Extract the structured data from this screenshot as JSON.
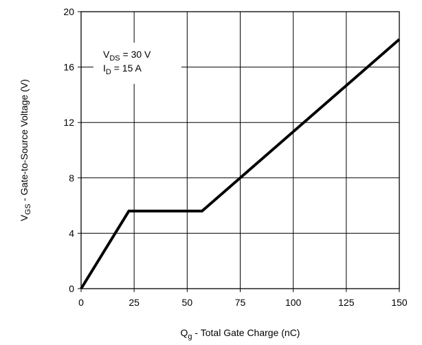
{
  "chart_data": {
    "type": "line",
    "title": "",
    "xlabel": {
      "main": "Q",
      "sub": "g",
      "rest": " - Total Gate Charge (nC)"
    },
    "ylabel": {
      "main": "V",
      "sub": "GS",
      "rest": " - Gate-to-Source Voltage (V)"
    },
    "xlim": [
      0,
      150
    ],
    "ylim": [
      0,
      20
    ],
    "x_ticks": [
      "0",
      "25",
      "50",
      "75",
      "100",
      "125",
      "150"
    ],
    "y_ticks": [
      "0",
      "4",
      "8",
      "12",
      "16",
      "20"
    ],
    "grid": true,
    "annotation": {
      "line1": {
        "main": "V",
        "sub": "DS",
        "rest": " = 30 V"
      },
      "line2": {
        "main": "I",
        "sub": "D",
        "rest": " = 15 A"
      }
    },
    "series": [
      {
        "x": [
          0,
          22.5,
          57,
          150
        ],
        "y": [
          0,
          5.6,
          5.6,
          18
        ],
        "color": "#000000"
      }
    ]
  }
}
